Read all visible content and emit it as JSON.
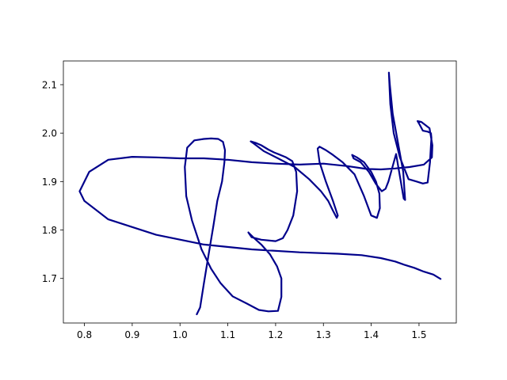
{
  "chart_data": {
    "type": "line",
    "title": "",
    "xlabel": "",
    "ylabel": "",
    "xlim": [
      0.756,
      1.578
    ],
    "ylim": [
      2.149,
      1.608
    ],
    "y_inverted": true,
    "grid": false,
    "legend": "none",
    "x_ticks": [
      0.8,
      0.9,
      1.0,
      1.1,
      1.2,
      1.3,
      1.4,
      1.5
    ],
    "x_tick_labels": [
      "0.8",
      "0.9",
      "1.0",
      "1.1",
      "1.2",
      "1.3",
      "1.4",
      "1.5"
    ],
    "y_ticks": [
      1.7,
      1.8,
      1.9,
      2.0,
      2.1
    ],
    "y_tick_labels": [
      "1.7",
      "1.8",
      "1.9",
      "2.0",
      "2.1"
    ],
    "series": [
      {
        "color": "#00008b",
        "x": [
          1.035,
          1.042,
          1.05,
          1.06,
          1.07,
          1.078,
          1.088,
          1.093,
          1.094,
          1.09,
          1.08,
          1.065,
          1.05,
          1.03,
          1.015,
          1.01,
          1.013,
          1.025,
          1.045,
          1.065,
          1.085,
          1.11,
          1.14,
          1.165,
          1.185,
          1.205,
          1.212,
          1.212,
          1.203,
          1.188,
          1.17,
          1.153,
          1.143,
          1.15,
          1.17,
          1.2,
          1.215,
          1.225,
          1.237,
          1.245,
          1.243,
          1.235,
          1.222,
          1.21,
          1.197,
          1.185,
          1.17,
          1.158,
          1.148,
          1.155,
          1.175,
          1.205,
          1.24,
          1.27,
          1.295,
          1.31,
          1.32,
          1.328,
          1.33,
          1.32,
          1.305,
          1.292,
          1.288,
          1.292,
          1.305,
          1.32,
          1.34,
          1.365,
          1.385,
          1.4,
          1.412,
          1.418,
          1.417,
          1.41,
          1.4,
          1.385,
          1.37,
          1.36,
          1.363,
          1.378,
          1.395,
          1.41,
          1.422,
          1.43,
          1.436,
          1.452,
          1.468,
          1.471,
          1.467,
          1.456,
          1.445,
          1.439,
          1.437,
          1.44,
          1.447,
          1.46,
          1.478,
          1.495,
          1.508,
          1.518,
          1.523,
          1.525,
          1.526,
          1.525,
          1.518,
          1.508,
          1.5,
          1.497,
          1.505,
          1.522,
          1.528,
          1.527,
          1.51,
          1.48,
          1.45,
          1.42,
          1.39,
          1.35,
          1.3,
          1.25,
          1.2,
          1.15,
          1.1,
          1.05,
          1.0,
          0.95,
          0.9,
          0.85,
          0.81,
          0.79,
          0.8,
          0.85,
          0.95,
          1.05,
          1.15,
          1.25,
          1.33,
          1.38,
          1.42,
          1.45,
          1.47,
          1.49,
          1.51,
          1.53,
          1.545
        ],
        "y": [
          1.626,
          1.64,
          1.69,
          1.75,
          1.81,
          1.86,
          1.9,
          1.94,
          1.965,
          1.982,
          1.988,
          1.989,
          1.988,
          1.985,
          1.97,
          1.93,
          1.87,
          1.82,
          1.76,
          1.72,
          1.69,
          1.663,
          1.648,
          1.635,
          1.632,
          1.633,
          1.662,
          1.7,
          1.725,
          1.75,
          1.77,
          1.785,
          1.795,
          1.785,
          1.78,
          1.777,
          1.783,
          1.8,
          1.83,
          1.88,
          1.92,
          1.942,
          1.95,
          1.955,
          1.96,
          1.966,
          1.975,
          1.98,
          1.983,
          1.978,
          1.963,
          1.948,
          1.93,
          1.905,
          1.88,
          1.86,
          1.84,
          1.825,
          1.83,
          1.86,
          1.9,
          1.94,
          1.968,
          1.972,
          1.965,
          1.955,
          1.94,
          1.915,
          1.87,
          1.83,
          1.825,
          1.845,
          1.875,
          1.9,
          1.92,
          1.94,
          1.95,
          1.955,
          1.948,
          1.94,
          1.92,
          1.895,
          1.88,
          1.885,
          1.9,
          1.957,
          1.865,
          1.862,
          1.92,
          1.98,
          2.04,
          2.1,
          2.125,
          2.06,
          2.0,
          1.95,
          1.905,
          1.9,
          1.896,
          1.898,
          1.94,
          1.975,
          1.99,
          2.0,
          2.003,
          2.005,
          2.02,
          2.025,
          2.023,
          2.01,
          1.975,
          1.95,
          1.935,
          1.93,
          1.927,
          1.925,
          1.926,
          1.932,
          1.937,
          1.935,
          1.937,
          1.94,
          1.945,
          1.948,
          1.948,
          1.95,
          1.951,
          1.945,
          1.92,
          1.88,
          1.86,
          1.822,
          1.79,
          1.77,
          1.76,
          1.754,
          1.751,
          1.748,
          1.742,
          1.735,
          1.728,
          1.722,
          1.714,
          1.708,
          1.699
        ]
      }
    ]
  }
}
